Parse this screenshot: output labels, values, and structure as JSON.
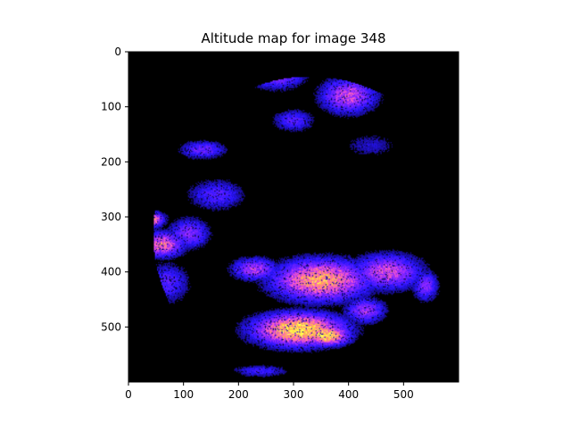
{
  "chart_data": {
    "type": "heatmap",
    "title": "Altitude map for image 348",
    "xlabel": "",
    "ylabel": "",
    "xlim": [
      0,
      600
    ],
    "ylim": [
      600,
      0
    ],
    "x_ticks": [
      0,
      100,
      200,
      300,
      400,
      500
    ],
    "y_ticks": [
      0,
      100,
      200,
      300,
      400,
      500
    ],
    "colormap": "gnuplot2",
    "background_color": "#000000",
    "grid": false,
    "legend": "none",
    "blobs": [
      {
        "cx": 310,
        "cy": 505,
        "rx": 90,
        "ry": 32,
        "intensity": 1.0
      },
      {
        "cx": 360,
        "cy": 515,
        "rx": 45,
        "ry": 20,
        "intensity": 1.0
      },
      {
        "cx": 350,
        "cy": 415,
        "rx": 95,
        "ry": 40,
        "intensity": 0.85
      },
      {
        "cx": 470,
        "cy": 400,
        "rx": 70,
        "ry": 35,
        "intensity": 0.6
      },
      {
        "cx": 540,
        "cy": 425,
        "rx": 25,
        "ry": 30,
        "intensity": 0.45
      },
      {
        "cx": 430,
        "cy": 470,
        "rx": 40,
        "ry": 25,
        "intensity": 0.5
      },
      {
        "cx": 35,
        "cy": 305,
        "rx": 30,
        "ry": 15,
        "intensity": 0.95
      },
      {
        "cx": 60,
        "cy": 350,
        "rx": 45,
        "ry": 25,
        "intensity": 0.7
      },
      {
        "cx": 110,
        "cy": 330,
        "rx": 40,
        "ry": 30,
        "intensity": 0.45
      },
      {
        "cx": 400,
        "cy": 80,
        "rx": 55,
        "ry": 35,
        "intensity": 0.6
      },
      {
        "cx": 270,
        "cy": 40,
        "rx": 55,
        "ry": 30,
        "intensity": 0.5
      },
      {
        "cx": 135,
        "cy": 178,
        "rx": 45,
        "ry": 18,
        "intensity": 0.4
      },
      {
        "cx": 70,
        "cy": 420,
        "rx": 45,
        "ry": 40,
        "intensity": 0.35
      },
      {
        "cx": 230,
        "cy": 395,
        "rx": 45,
        "ry": 22,
        "intensity": 0.55
      },
      {
        "cx": 160,
        "cy": 260,
        "rx": 55,
        "ry": 30,
        "intensity": 0.35
      },
      {
        "cx": 240,
        "cy": 580,
        "rx": 55,
        "ry": 12,
        "intensity": 0.3
      },
      {
        "cx": 440,
        "cy": 170,
        "rx": 55,
        "ry": 25,
        "intensity": 0.2
      },
      {
        "cx": 300,
        "cy": 125,
        "rx": 40,
        "ry": 22,
        "intensity": 0.35
      },
      {
        "cx": 25,
        "cy": 330,
        "rx": 20,
        "ry": 22,
        "intensity": 0.8
      }
    ]
  }
}
